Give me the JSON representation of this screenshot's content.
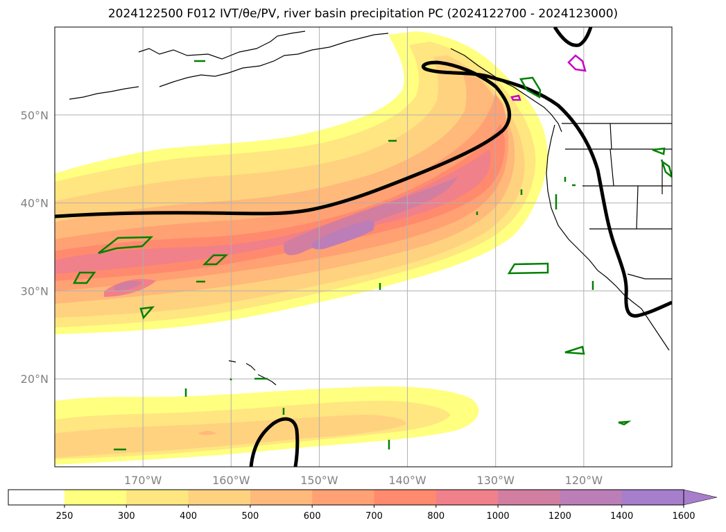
{
  "title": "2024122500 F012 IVT/θe/PV, river basin precipitation PC (2024122700 - 2024123000)",
  "colors": {
    "ivt": [
      "#ffff80",
      "#ffe680",
      "#ffd27f",
      "#ffb97a",
      "#ffa173",
      "#ff8a6e",
      "#f0808a",
      "#d27ea0",
      "#bc7eb8",
      "#a67ecb"
    ],
    "pv_contour": "#000000",
    "precip_contour": "#008000",
    "precip_high": "#c800c8",
    "coastline": "#000000",
    "grid": "#b0b0b0",
    "axis_label": "#808080"
  },
  "map": {
    "lon_range": [
      -180,
      -110
    ],
    "lat_range": [
      10,
      60
    ],
    "lat_ticks": [
      {
        "lat": 50,
        "label": "50°N"
      },
      {
        "lat": 40,
        "label": "40°N"
      },
      {
        "lat": 30,
        "label": "30°N"
      },
      {
        "lat": 20,
        "label": "20°N"
      }
    ],
    "lon_ticks": [
      {
        "lon": -170,
        "label": "170°W"
      },
      {
        "lon": -160,
        "label": "160°W"
      },
      {
        "lon": -150,
        "label": "150°W"
      },
      {
        "lon": -140,
        "label": "140°W"
      },
      {
        "lon": -130,
        "label": "130°W"
      },
      {
        "lon": -120,
        "label": "120°W"
      }
    ]
  },
  "colorbar": {
    "labels": [
      "250",
      "300",
      "400",
      "500",
      "600",
      "700",
      "800",
      "1000",
      "1200",
      "1400",
      "1600"
    ]
  }
}
